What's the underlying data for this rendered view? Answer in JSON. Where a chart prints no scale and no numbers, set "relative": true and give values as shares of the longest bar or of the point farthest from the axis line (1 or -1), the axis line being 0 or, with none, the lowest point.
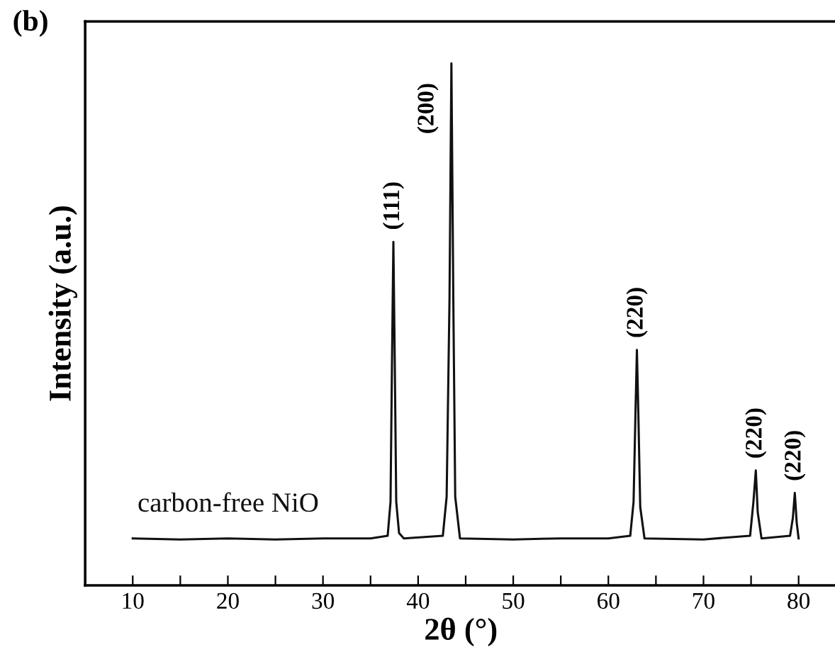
{
  "chart_data": {
    "type": "line",
    "title": "(b)",
    "xlabel": "2θ (°)",
    "ylabel": "Intensity (a.u.)",
    "relative": true,
    "xlim": [
      5,
      84
    ],
    "xticks": [
      10,
      {
        "value": 15,
        "label": null
      },
      20,
      {
        "value": 25,
        "label": null
      },
      30,
      {
        "value": 35,
        "label": null
      },
      40,
      {
        "value": 45,
        "label": null
      },
      50,
      {
        "value": 55,
        "label": null
      },
      60,
      {
        "value": 65,
        "label": null
      },
      70,
      {
        "value": 75,
        "label": null
      },
      80
    ],
    "series": [
      {
        "name": "carbon-free NiO",
        "color": "#111111",
        "x": [
          10,
          15,
          20,
          25,
          30,
          35,
          36.8,
          37.1,
          37.25,
          37.4,
          37.55,
          37.7,
          38.0,
          38.5,
          42.6,
          43.0,
          43.3,
          43.5,
          43.7,
          43.9,
          44.4,
          50,
          55,
          60,
          62.3,
          62.65,
          62.85,
          63.0,
          63.15,
          63.35,
          63.8,
          70,
          74.9,
          75.25,
          75.5,
          75.7,
          76.1,
          79.1,
          79.4,
          79.6,
          79.8,
          80
        ],
        "values": [
          0.09,
          0.088,
          0.09,
          0.088,
          0.09,
          0.09,
          0.095,
          0.16,
          0.42,
          0.658,
          0.42,
          0.16,
          0.1,
          0.09,
          0.095,
          0.17,
          0.55,
          1.0,
          0.55,
          0.17,
          0.09,
          0.088,
          0.09,
          0.09,
          0.095,
          0.16,
          0.33,
          0.451,
          0.33,
          0.15,
          0.09,
          0.088,
          0.095,
          0.16,
          0.22,
          0.14,
          0.09,
          0.095,
          0.13,
          0.177,
          0.12,
          0.09
        ]
      }
    ],
    "annotations": [
      {
        "text": "(111)",
        "x": 37.4,
        "y": 0.658
      },
      {
        "text": "(200)",
        "x": 43.5,
        "y": 1.0
      },
      {
        "text": "(220)",
        "x": 63.0,
        "y": 0.451
      },
      {
        "text": "(220)",
        "x": 75.5,
        "y": 0.22
      },
      {
        "text": "(220)",
        "x": 79.6,
        "y": 0.177
      }
    ]
  }
}
